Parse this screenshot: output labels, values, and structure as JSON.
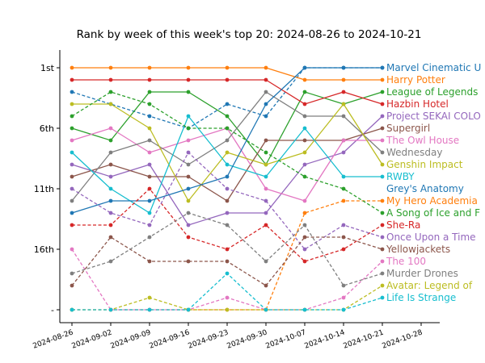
{
  "chart_data": {
    "type": "line",
    "title": "Rank by week of this week's top 20: 2024-08-26 to 2024-10-21",
    "xlabel": "",
    "ylabel": "",
    "x": [
      "2024-08-26",
      "2024-09-02",
      "2024-09-09",
      "2024-09-16",
      "2024-09-23",
      "2024-09-30",
      "2024-10-07",
      "2024-10-14",
      "2024-10-21"
    ],
    "x_ticks": [
      "2024-08-26",
      "2024-09-02",
      "2024-09-09",
      "2024-09-16",
      "2024-09-23",
      "2024-09-30",
      "2024-10-07",
      "2024-10-14",
      "2024-10-21",
      "2024-10-28"
    ],
    "y_ticks": [
      {
        "value": 1,
        "label": "1st"
      },
      {
        "value": 6,
        "label": "6th"
      },
      {
        "value": 11,
        "label": "11th"
      },
      {
        "value": 16,
        "label": "16th"
      },
      {
        "value": 21,
        "label": "-"
      }
    ],
    "ylim": [
      22,
      0
    ],
    "unranked_value": 21,
    "grid": false,
    "series": [
      {
        "name": "Marvel Cinematic U",
        "color": "#1f77b4",
        "dashed": true,
        "values": [
          3,
          4,
          5,
          6,
          4,
          5,
          1,
          1,
          1
        ]
      },
      {
        "name": "Harry Potter",
        "color": "#ff7f0e",
        "dashed": false,
        "values": [
          1,
          1,
          1,
          1,
          1,
          1,
          2,
          2,
          2
        ]
      },
      {
        "name": "League of Legends",
        "color": "#2ca02c",
        "dashed": false,
        "values": [
          6,
          7,
          3,
          3,
          5,
          9,
          3,
          4,
          3
        ]
      },
      {
        "name": "Hazbin Hotel",
        "color": "#d62728",
        "dashed": false,
        "values": [
          2,
          2,
          2,
          2,
          2,
          2,
          4,
          3,
          4
        ]
      },
      {
        "name": "Project SEKAI COLO",
        "color": "#9467bd",
        "dashed": false,
        "values": [
          9,
          10,
          9,
          14,
          13,
          13,
          9,
          8,
          5
        ]
      },
      {
        "name": "Supergirl",
        "color": "#8c564b",
        "dashed": false,
        "values": [
          10,
          9,
          10,
          10,
          12,
          7,
          7,
          7,
          6
        ]
      },
      {
        "name": "The Owl House",
        "color": "#e377c2",
        "dashed": false,
        "values": [
          7,
          6,
          8,
          7,
          6,
          11,
          12,
          7,
          7
        ]
      },
      {
        "name": "Wednesday",
        "color": "#7f7f7f",
        "dashed": false,
        "values": [
          12,
          8,
          7,
          9,
          7,
          3,
          5,
          5,
          8
        ]
      },
      {
        "name": "Genshin Impact",
        "color": "#bcbd22",
        "dashed": false,
        "values": [
          4,
          4,
          6,
          12,
          8,
          9,
          8,
          4,
          9
        ]
      },
      {
        "name": "RWBY",
        "color": "#17becf",
        "dashed": false,
        "values": [
          8,
          11,
          13,
          5,
          9,
          10,
          6,
          10,
          10
        ]
      },
      {
        "name": "Grey's Anatomy",
        "color": "#1f77b4",
        "dashed": false,
        "values": [
          13,
          12,
          12,
          11,
          10,
          4,
          1,
          1,
          1
        ]
      },
      {
        "name": "My Hero Academia",
        "color": "#ff7f0e",
        "dashed": true,
        "values": [
          21,
          21,
          21,
          21,
          21,
          21,
          13,
          12,
          12
        ]
      },
      {
        "name": "A Song of Ice and F",
        "color": "#2ca02c",
        "dashed": true,
        "values": [
          5,
          3,
          4,
          6,
          6,
          8,
          10,
          11,
          13
        ]
      },
      {
        "name": "She-Ra",
        "color": "#d62728",
        "dashed": true,
        "values": [
          14,
          14,
          11,
          15,
          16,
          14,
          17,
          16,
          14
        ]
      },
      {
        "name": "Once Upon a Time",
        "color": "#9467bd",
        "dashed": true,
        "values": [
          11,
          13,
          14,
          8,
          11,
          12,
          16,
          14,
          15
        ]
      },
      {
        "name": "Yellowjackets",
        "color": "#8c564b",
        "dashed": true,
        "values": [
          19,
          15,
          17,
          17,
          17,
          19,
          15,
          15,
          16
        ]
      },
      {
        "name": "The 100",
        "color": "#e377c2",
        "dashed": true,
        "values": [
          16,
          21,
          21,
          21,
          20,
          21,
          21,
          20,
          17
        ]
      },
      {
        "name": "Murder Drones",
        "color": "#7f7f7f",
        "dashed": true,
        "values": [
          18,
          17,
          15,
          13,
          14,
          17,
          14,
          19,
          18
        ]
      },
      {
        "name": "Avatar: Legend of",
        "color": "#bcbd22",
        "dashed": true,
        "values": [
          21,
          21,
          20,
          21,
          21,
          21,
          21,
          21,
          19
        ]
      },
      {
        "name": "Life Is Strange",
        "color": "#17becf",
        "dashed": true,
        "values": [
          21,
          21,
          21,
          21,
          18,
          21,
          21,
          21,
          20
        ]
      }
    ]
  }
}
